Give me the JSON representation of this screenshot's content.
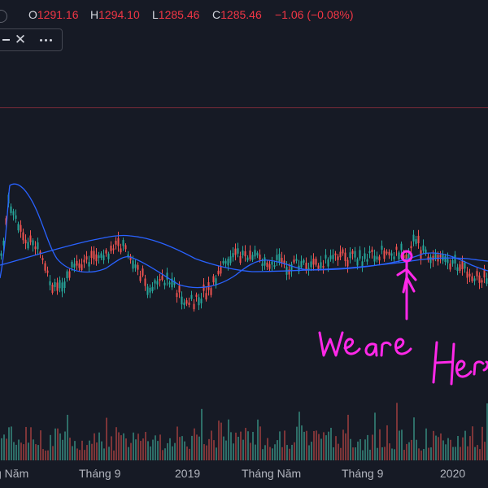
{
  "ohlc": {
    "open_key": "O",
    "open": "1291.16",
    "high_key": "H",
    "high": "1294.10",
    "low_key": "L",
    "low": "1285.46",
    "close_key": "C",
    "close": "1285.46",
    "change": "−1.06 (−0.08%)"
  },
  "indicator_toolbar": {
    "hide_icon": "minus-icon",
    "close_icon": "close-icon",
    "close_glyph": "✕",
    "more_icon": "more-dots-icon"
  },
  "time_axis": {
    "labels": [
      "g Năm",
      "Tháng 9",
      "2019",
      "Tháng Năm",
      "Tháng 9",
      "2020"
    ]
  },
  "annotation": {
    "handwritten_text": "We are Here",
    "color": "#ff28e8"
  },
  "colors": {
    "background": "#161a25",
    "up_candle": "#26a69a",
    "down_candle": "#ef5350",
    "moving_average": "#2962ff",
    "price_line": "#7a2a38",
    "volume_up": "#2e6e68",
    "volume_down": "#7d3538",
    "axis_text": "#b2b5be",
    "negative_value": "#f23645"
  },
  "chart_data": {
    "type": "candlestick",
    "x_axis_tick_labels": [
      "g Năm",
      "Tháng 9",
      "2019",
      "Tháng Năm",
      "Tháng 9",
      "2020"
    ],
    "last": {
      "open": 1291.16,
      "high": 1294.1,
      "low": 1285.46,
      "close": 1285.46,
      "change": -1.06,
      "change_pct": -0.08
    },
    "series": [
      {
        "kind": "moving-average-fast"
      },
      {
        "kind": "moving-average-slow"
      },
      {
        "kind": "volume"
      }
    ],
    "annotation": "We are Here"
  }
}
